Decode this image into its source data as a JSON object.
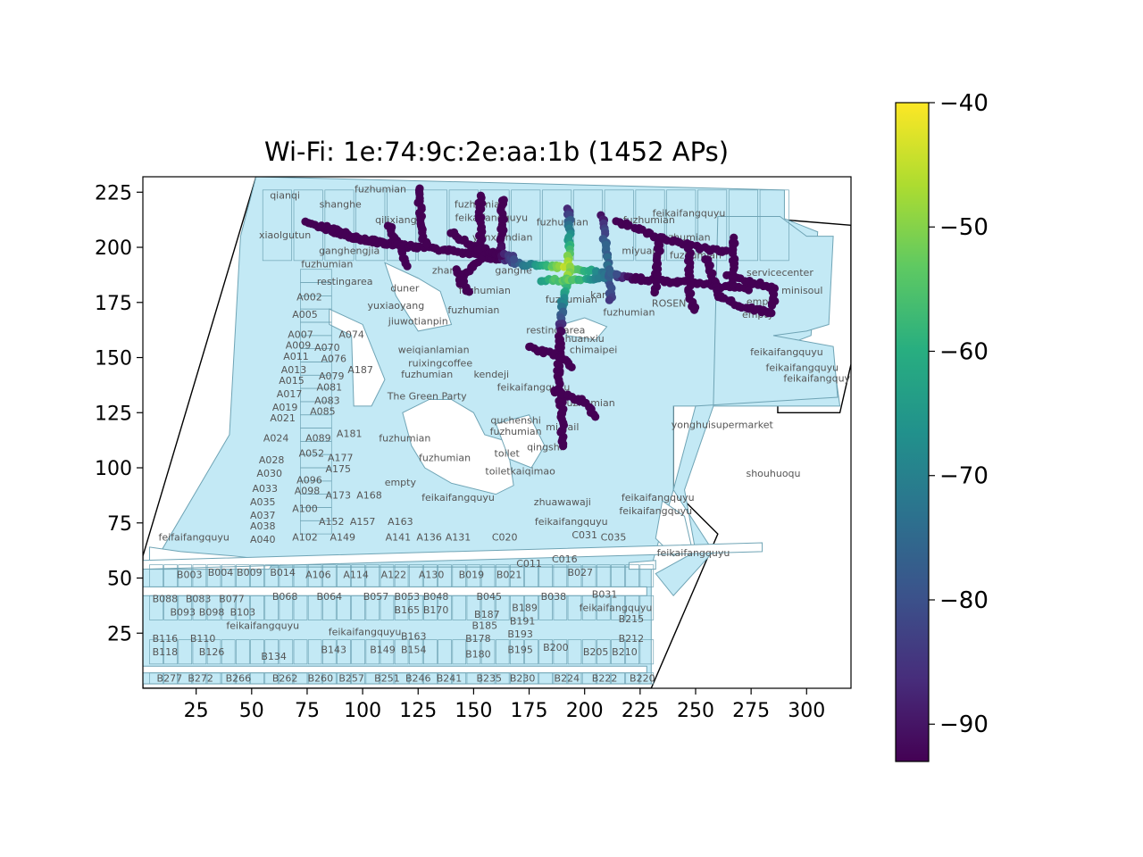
{
  "chart_data": {
    "type": "scatter",
    "title": "Wi-Fi: 1e:74:9c:2e:aa:1b (1452 APs)",
    "xlabel": "",
    "ylabel": "",
    "xlim": [
      1,
      320
    ],
    "ylim": [
      0,
      232
    ],
    "x_ticks": [
      25,
      50,
      75,
      100,
      125,
      150,
      175,
      200,
      225,
      250,
      275,
      300
    ],
    "y_ticks": [
      25,
      50,
      75,
      100,
      125,
      150,
      175,
      200,
      225
    ],
    "grid": false,
    "colorbar": {
      "colormap": "viridis",
      "min": -93,
      "max": -40,
      "ticks": [
        -40,
        -50,
        -60,
        -70,
        -80,
        -90
      ]
    },
    "colors": {
      "floor_fill": "#c3e9f5",
      "floor_edge": "#6fa4b5",
      "outline": "#000000"
    },
    "shop_labels": [
      {
        "text": "qianqi",
        "x": 65,
        "y": 222
      },
      {
        "text": "shanghe",
        "x": 90,
        "y": 218
      },
      {
        "text": "fuzhumian",
        "x": 108,
        "y": 225
      },
      {
        "text": "qilixiang",
        "x": 115,
        "y": 211
      },
      {
        "text": "fuzhumian",
        "x": 153,
        "y": 218
      },
      {
        "text": "feikaifangquyu",
        "x": 158,
        "y": 212
      },
      {
        "text": "xiaolgutun",
        "x": 65,
        "y": 204
      },
      {
        "text": "ganghengjia",
        "x": 94,
        "y": 197
      },
      {
        "text": "yunxiandian",
        "x": 163,
        "y": 203
      },
      {
        "text": "fuzhumian",
        "x": 84,
        "y": 191
      },
      {
        "text": "zhang",
        "x": 138,
        "y": 188
      },
      {
        "text": "ganghe",
        "x": 168,
        "y": 188
      },
      {
        "text": "restingarea",
        "x": 92,
        "y": 183
      },
      {
        "text": "duner",
        "x": 119,
        "y": 180
      },
      {
        "text": "fuzhumian",
        "x": 155,
        "y": 179
      },
      {
        "text": "A002",
        "x": 76,
        "y": 176
      },
      {
        "text": "yuxiaoyang",
        "x": 115,
        "y": 172
      },
      {
        "text": "jiuwotianpin",
        "x": 125,
        "y": 165
      },
      {
        "text": "fuzhumian",
        "x": 150,
        "y": 170
      },
      {
        "text": "A005",
        "x": 74,
        "y": 168
      },
      {
        "text": "A007",
        "x": 72,
        "y": 159
      },
      {
        "text": "A074",
        "x": 95,
        "y": 159
      },
      {
        "text": "A009",
        "x": 71,
        "y": 154
      },
      {
        "text": "A070",
        "x": 84,
        "y": 153
      },
      {
        "text": "weiqianlamian",
        "x": 132,
        "y": 152
      },
      {
        "text": "A011",
        "x": 70,
        "y": 149
      },
      {
        "text": "A076",
        "x": 87,
        "y": 148
      },
      {
        "text": "ruixingcoffee",
        "x": 135,
        "y": 146
      },
      {
        "text": "A013",
        "x": 69,
        "y": 143
      },
      {
        "text": "A187",
        "x": 99,
        "y": 143
      },
      {
        "text": "fuzhumian",
        "x": 129,
        "y": 141
      },
      {
        "text": "kendeji",
        "x": 158,
        "y": 141
      },
      {
        "text": "A015",
        "x": 68,
        "y": 138
      },
      {
        "text": "A079",
        "x": 86,
        "y": 140
      },
      {
        "text": "A017",
        "x": 67,
        "y": 132
      },
      {
        "text": "A081",
        "x": 85,
        "y": 135
      },
      {
        "text": "feikaifangquyu",
        "x": 177,
        "y": 135
      },
      {
        "text": "The Green Party",
        "x": 129,
        "y": 131
      },
      {
        "text": "A019",
        "x": 65,
        "y": 126
      },
      {
        "text": "A083",
        "x": 84,
        "y": 129
      },
      {
        "text": "fuzhumian",
        "x": 202,
        "y": 128
      },
      {
        "text": "A021",
        "x": 64,
        "y": 121
      },
      {
        "text": "A085",
        "x": 82,
        "y": 124
      },
      {
        "text": "quchenshi",
        "x": 169,
        "y": 120
      },
      {
        "text": "fuzhumian",
        "x": 169,
        "y": 115
      },
      {
        "text": "mi.nail",
        "x": 190,
        "y": 117
      },
      {
        "text": "yonghuisupermarket",
        "x": 262,
        "y": 118
      },
      {
        "text": "A024",
        "x": 61,
        "y": 112
      },
      {
        "text": "A089",
        "x": 80,
        "y": 112
      },
      {
        "text": "A181",
        "x": 94,
        "y": 114
      },
      {
        "text": "fuzhumian",
        "x": 119,
        "y": 112
      },
      {
        "text": "qingshi",
        "x": 182,
        "y": 108
      },
      {
        "text": "A052",
        "x": 77,
        "y": 105
      },
      {
        "text": "A177",
        "x": 90,
        "y": 103
      },
      {
        "text": "toilet",
        "x": 165,
        "y": 105
      },
      {
        "text": "A028",
        "x": 59,
        "y": 102
      },
      {
        "text": "fuzhumian",
        "x": 137,
        "y": 103
      },
      {
        "text": "A175",
        "x": 89,
        "y": 98
      },
      {
        "text": "toiletkaiqimao",
        "x": 171,
        "y": 97
      },
      {
        "text": "shouhuoqu",
        "x": 285,
        "y": 96
      },
      {
        "text": "A030",
        "x": 58,
        "y": 96
      },
      {
        "text": "A096",
        "x": 76,
        "y": 93
      },
      {
        "text": "empty",
        "x": 117,
        "y": 92
      },
      {
        "text": "A033",
        "x": 56,
        "y": 89
      },
      {
        "text": "A098",
        "x": 75,
        "y": 88
      },
      {
        "text": "A173",
        "x": 89,
        "y": 86
      },
      {
        "text": "A168",
        "x": 103,
        "y": 86
      },
      {
        "text": "feikaifangquyu",
        "x": 143,
        "y": 85
      },
      {
        "text": "feikaifangquyu",
        "x": 233,
        "y": 85
      },
      {
        "text": "A035",
        "x": 55,
        "y": 83
      },
      {
        "text": "zhuawawaji",
        "x": 190,
        "y": 83
      },
      {
        "text": "A100",
        "x": 74,
        "y": 80
      },
      {
        "text": "feikaifangquyu",
        "x": 232,
        "y": 79
      },
      {
        "text": "A037",
        "x": 55,
        "y": 77
      },
      {
        "text": "A152",
        "x": 86,
        "y": 74
      },
      {
        "text": "A157",
        "x": 100,
        "y": 74
      },
      {
        "text": "A163",
        "x": 117,
        "y": 74
      },
      {
        "text": "feikaifangquyu",
        "x": 194,
        "y": 74
      },
      {
        "text": "A038",
        "x": 55,
        "y": 72
      },
      {
        "text": "C031",
        "x": 200,
        "y": 68
      },
      {
        "text": "C035",
        "x": 213,
        "y": 67
      },
      {
        "text": "feifaifangquyu",
        "x": 24,
        "y": 67
      },
      {
        "text": "A040",
        "x": 55,
        "y": 66
      },
      {
        "text": "A102",
        "x": 74,
        "y": 67
      },
      {
        "text": "A149",
        "x": 91,
        "y": 67
      },
      {
        "text": "A141",
        "x": 116,
        "y": 67
      },
      {
        "text": "A136",
        "x": 130,
        "y": 67
      },
      {
        "text": "A131",
        "x": 143,
        "y": 67
      },
      {
        "text": "C020",
        "x": 164,
        "y": 67
      },
      {
        "text": "feikaifangquyu",
        "x": 249,
        "y": 60
      },
      {
        "text": "C016",
        "x": 191,
        "y": 57
      },
      {
        "text": "C011",
        "x": 175,
        "y": 55
      },
      {
        "text": "B003",
        "x": 22,
        "y": 50
      },
      {
        "text": "B004",
        "x": 36,
        "y": 51
      },
      {
        "text": "B009",
        "x": 49,
        "y": 51
      },
      {
        "text": "B014",
        "x": 64,
        "y": 51
      },
      {
        "text": "A106",
        "x": 80,
        "y": 50
      },
      {
        "text": "A114",
        "x": 97,
        "y": 50
      },
      {
        "text": "A122",
        "x": 114,
        "y": 50
      },
      {
        "text": "A130",
        "x": 131,
        "y": 50
      },
      {
        "text": "B019",
        "x": 149,
        "y": 50
      },
      {
        "text": "B021",
        "x": 166,
        "y": 50
      },
      {
        "text": "B027",
        "x": 198,
        "y": 51
      },
      {
        "text": "B088",
        "x": 11,
        "y": 39
      },
      {
        "text": "B083",
        "x": 26,
        "y": 39
      },
      {
        "text": "B077",
        "x": 41,
        "y": 39
      },
      {
        "text": "B068",
        "x": 65,
        "y": 40
      },
      {
        "text": "B064",
        "x": 85,
        "y": 40
      },
      {
        "text": "B057",
        "x": 106,
        "y": 40
      },
      {
        "text": "B053",
        "x": 120,
        "y": 40
      },
      {
        "text": "B048",
        "x": 133,
        "y": 40
      },
      {
        "text": "B045",
        "x": 157,
        "y": 40
      },
      {
        "text": "B038",
        "x": 186,
        "y": 40
      },
      {
        "text": "B031",
        "x": 209,
        "y": 41
      },
      {
        "text": "feikaifangquyu",
        "x": 214,
        "y": 35
      },
      {
        "text": "B093",
        "x": 19,
        "y": 33
      },
      {
        "text": "B098",
        "x": 32,
        "y": 33
      },
      {
        "text": "B103",
        "x": 46,
        "y": 33
      },
      {
        "text": "B165",
        "x": 120,
        "y": 34
      },
      {
        "text": "B170",
        "x": 133,
        "y": 34
      },
      {
        "text": "B189",
        "x": 173,
        "y": 35
      },
      {
        "text": "B187",
        "x": 156,
        "y": 32
      },
      {
        "text": "B215",
        "x": 221,
        "y": 30
      },
      {
        "text": "B185",
        "x": 155,
        "y": 27
      },
      {
        "text": "B191",
        "x": 172,
        "y": 29
      },
      {
        "text": "feikaifangquyu",
        "x": 55,
        "y": 27
      },
      {
        "text": "feikaifangquyu",
        "x": 101,
        "y": 24
      },
      {
        "text": "B193",
        "x": 171,
        "y": 23
      },
      {
        "text": "B116",
        "x": 11,
        "y": 21
      },
      {
        "text": "B110",
        "x": 28,
        "y": 21
      },
      {
        "text": "B163",
        "x": 123,
        "y": 22
      },
      {
        "text": "B178",
        "x": 152,
        "y": 21
      },
      {
        "text": "B212",
        "x": 221,
        "y": 21
      },
      {
        "text": "B118",
        "x": 11,
        "y": 15
      },
      {
        "text": "B126",
        "x": 32,
        "y": 15
      },
      {
        "text": "B143",
        "x": 87,
        "y": 16
      },
      {
        "text": "B149",
        "x": 109,
        "y": 16
      },
      {
        "text": "B154",
        "x": 123,
        "y": 16
      },
      {
        "text": "B195",
        "x": 171,
        "y": 16
      },
      {
        "text": "B200",
        "x": 187,
        "y": 17
      },
      {
        "text": "B205",
        "x": 205,
        "y": 15
      },
      {
        "text": "B210",
        "x": 218,
        "y": 15
      },
      {
        "text": "B134",
        "x": 60,
        "y": 13
      },
      {
        "text": "B180",
        "x": 152,
        "y": 14
      },
      {
        "text": "ROSEN",
        "x": 238,
        "y": 173
      },
      {
        "text": "servicecenter",
        "x": 288,
        "y": 187
      },
      {
        "text": "minisoul",
        "x": 298,
        "y": 179
      },
      {
        "text": "empty",
        "x": 280,
        "y": 174
      },
      {
        "text": "empty",
        "x": 278,
        "y": 168
      },
      {
        "text": "feikaifangquyu",
        "x": 247,
        "y": 214
      },
      {
        "text": "feikaifangquyu",
        "x": 291,
        "y": 151
      },
      {
        "text": "feikaifangquyu",
        "x": 298,
        "y": 144
      },
      {
        "text": "feikaifangquyu",
        "x": 306,
        "y": 139
      },
      {
        "text": "fuzhumian",
        "x": 220,
        "y": 169
      },
      {
        "text": "fuzhumian",
        "x": 245,
        "y": 203
      },
      {
        "text": "fuzhumian",
        "x": 250,
        "y": 195
      },
      {
        "text": "fuzhumian",
        "x": 190,
        "y": 210
      },
      {
        "text": "fuzhumian",
        "x": 194,
        "y": 175
      },
      {
        "text": "miyuan",
        "x": 225,
        "y": 197
      },
      {
        "text": "fuzhumian",
        "x": 229,
        "y": 211
      },
      {
        "text": "resting area",
        "x": 187,
        "y": 161
      },
      {
        "text": "huanxiu",
        "x": 200,
        "y": 157
      },
      {
        "text": "chimaipei",
        "x": 204,
        "y": 152
      },
      {
        "text": "kang",
        "x": 208,
        "y": 177
      },
      {
        "text": "B277",
        "x": 13,
        "y": 3
      },
      {
        "text": "B272",
        "x": 27,
        "y": 3
      },
      {
        "text": "B266",
        "x": 44,
        "y": 3
      },
      {
        "text": "B262",
        "x": 65,
        "y": 3
      },
      {
        "text": "B260",
        "x": 81,
        "y": 3
      },
      {
        "text": "B257",
        "x": 95,
        "y": 3
      },
      {
        "text": "B251",
        "x": 111,
        "y": 3
      },
      {
        "text": "B246",
        "x": 125,
        "y": 3
      },
      {
        "text": "B241",
        "x": 139,
        "y": 3
      },
      {
        "text": "B235",
        "x": 157,
        "y": 3
      },
      {
        "text": "B230",
        "x": 172,
        "y": 3
      },
      {
        "text": "B224",
        "x": 192,
        "y": 3
      },
      {
        "text": "B222",
        "x": 209,
        "y": 3
      },
      {
        "text": "B220",
        "x": 226,
        "y": 3
      }
    ]
  }
}
